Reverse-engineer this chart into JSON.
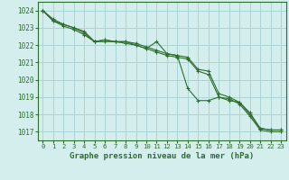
{
  "title": "Graphe pression niveau de la mer (hPa)",
  "background_color": "#d4eeee",
  "grid_color": "#aad4d4",
  "line_color": "#2d6e2d",
  "xlim": [
    -0.5,
    23.5
  ],
  "ylim": [
    1016.5,
    1024.5
  ],
  "yticks": [
    1017,
    1018,
    1019,
    1020,
    1021,
    1022,
    1023,
    1024
  ],
  "xticks": [
    0,
    1,
    2,
    3,
    4,
    5,
    6,
    7,
    8,
    9,
    10,
    11,
    12,
    13,
    14,
    15,
    16,
    17,
    18,
    19,
    20,
    21,
    22,
    23
  ],
  "series1": [
    1024.0,
    1023.5,
    1023.2,
    1023.0,
    1022.8,
    1022.2,
    1022.2,
    1022.2,
    1022.2,
    1022.0,
    1021.8,
    1022.2,
    1021.5,
    1021.4,
    1019.5,
    1018.8,
    1018.8,
    1019.0,
    1018.8,
    1018.7,
    1018.1,
    1017.2,
    1017.1,
    1017.1
  ],
  "series2": [
    1024.0,
    1023.4,
    1023.2,
    1023.0,
    1022.7,
    1022.2,
    1022.3,
    1022.2,
    1022.2,
    1022.1,
    1021.9,
    1021.7,
    1021.5,
    1021.4,
    1021.3,
    1020.6,
    1020.5,
    1019.2,
    1019.0,
    1018.7,
    1018.0,
    1017.2,
    1017.1,
    1017.1
  ],
  "series3": [
    1024.0,
    1023.4,
    1023.1,
    1022.9,
    1022.6,
    1022.2,
    1022.3,
    1022.2,
    1022.1,
    1022.0,
    1021.8,
    1021.6,
    1021.4,
    1021.3,
    1021.2,
    1020.5,
    1020.3,
    1019.0,
    1018.9,
    1018.6,
    1017.9,
    1017.1,
    1017.0,
    1017.0
  ],
  "ylabel_fontsize": 5.5,
  "xlabel_fontsize": 6.0,
  "title_fontsize": 6.5
}
